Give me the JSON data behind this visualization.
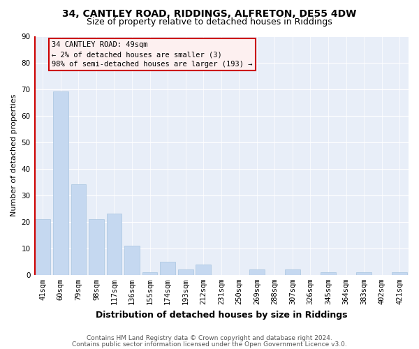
{
  "title1": "34, CANTLEY ROAD, RIDDINGS, ALFRETON, DE55 4DW",
  "title2": "Size of property relative to detached houses in Riddings",
  "xlabel": "Distribution of detached houses by size in Riddings",
  "ylabel": "Number of detached properties",
  "categories": [
    "41sqm",
    "60sqm",
    "79sqm",
    "98sqm",
    "117sqm",
    "136sqm",
    "155sqm",
    "174sqm",
    "193sqm",
    "212sqm",
    "231sqm",
    "250sqm",
    "269sqm",
    "288sqm",
    "307sqm",
    "326sqm",
    "345sqm",
    "364sqm",
    "383sqm",
    "402sqm",
    "421sqm"
  ],
  "values": [
    21,
    69,
    34,
    21,
    23,
    11,
    1,
    5,
    2,
    4,
    0,
    0,
    2,
    0,
    2,
    0,
    1,
    0,
    1,
    0,
    1
  ],
  "bar_color": "#c5d8f0",
  "bar_edge_color": "#a8c4e0",
  "highlight_color": "#cc0000",
  "ylim": [
    0,
    90
  ],
  "yticks": [
    0,
    10,
    20,
    30,
    40,
    50,
    60,
    70,
    80,
    90
  ],
  "annotation_box_title": "34 CANTLEY ROAD: 49sqm",
  "annotation_line1": "← 2% of detached houses are smaller (3)",
  "annotation_line2": "98% of semi-detached houses are larger (193) →",
  "annotation_box_facecolor": "#fdf0f0",
  "annotation_box_edge": "#cc0000",
  "footnote1": "Contains HM Land Registry data © Crown copyright and database right 2024.",
  "footnote2": "Contains public sector information licensed under the Open Government Licence v3.0.",
  "plot_bg_color": "#e8eef8",
  "title1_fontsize": 10,
  "title2_fontsize": 9,
  "xlabel_fontsize": 9,
  "ylabel_fontsize": 8,
  "tick_fontsize": 7.5,
  "annot_fontsize": 7.5,
  "footnote_fontsize": 6.5
}
